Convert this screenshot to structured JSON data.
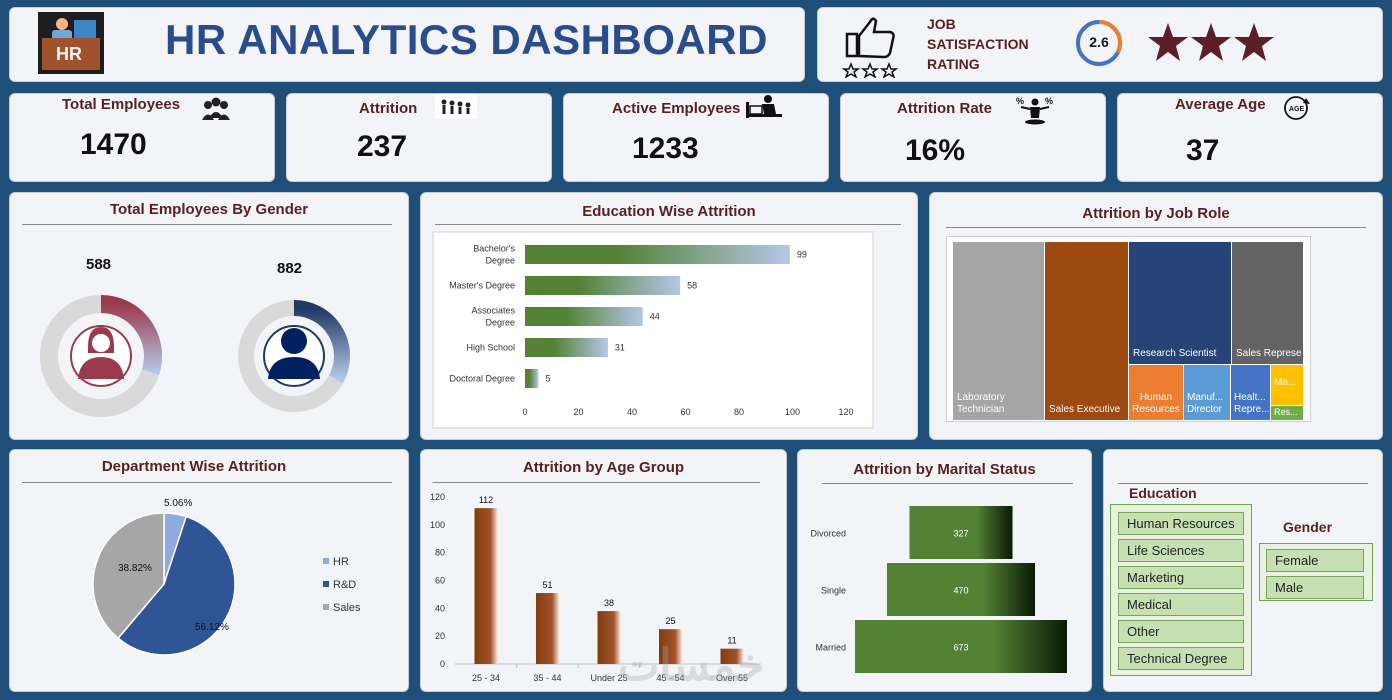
{
  "header": {
    "title": "HR ANALYTICS DASHBOARD",
    "logo_text": "HR"
  },
  "satisfaction": {
    "label_line1": "JOB",
    "label_line2": "SATISFACTION",
    "label_line3": "RATING",
    "rating": "2.6",
    "rating_value": 2.6,
    "rating_max": 4,
    "stars_filled": 3
  },
  "kpis": [
    {
      "label": "Total Employees",
      "value": "1470",
      "icon": "people-group-icon"
    },
    {
      "label": "Attrition",
      "value": "237",
      "icon": "walking-people-icon"
    },
    {
      "label": "Active Employees",
      "value": "1233",
      "icon": "desk-worker-icon"
    },
    {
      "label": "Attrition Rate",
      "value": "16%",
      "icon": "percent-person-icon"
    },
    {
      "label": "Average Age",
      "value": "37",
      "icon": "age-cycle-icon"
    }
  ],
  "colors": {
    "title": "#2a4c8c",
    "label": "#5a1f1f",
    "female": "#9b3a4e",
    "male": "#203864",
    "bar_green": "#548235",
    "bar_brown": "#843c0c",
    "hr": "#8faadc",
    "rnd": "#2f5597",
    "sales": "#a6a6a6",
    "star": "#5a1f28"
  },
  "gender_chart": {
    "title": "Total Employees By Gender",
    "female_count": "588",
    "male_count": "882",
    "total": 1470,
    "female_value": 588,
    "male_value": 882
  },
  "chart_data": [
    {
      "id": "education",
      "type": "bar",
      "orientation": "horizontal",
      "title": "Education Wise Attrition",
      "categories": [
        "Bachelor's Degree",
        "Master's Degree",
        "Associates Degree",
        "High School",
        "Doctoral Degree"
      ],
      "values": [
        99,
        58,
        44,
        31,
        5
      ],
      "xlim": [
        0,
        120
      ],
      "ticks": [
        "0",
        "20",
        "40",
        "60",
        "80",
        "100",
        "120"
      ]
    },
    {
      "id": "jobrole",
      "type": "treemap",
      "title": "Attrition by Job Role",
      "labels": [
        "Laboratory Technician",
        "Sales Executive",
        "Research Scientist",
        "Sales Representati...",
        "Human Resources",
        "Manuf... Director",
        "Healt... Repre...",
        "Ma...",
        "Res..."
      ]
    },
    {
      "id": "department",
      "type": "pie",
      "title": "Department Wise Attrition",
      "categories": [
        "HR",
        "R&D",
        "Sales"
      ],
      "values": [
        5.06,
        56.12,
        38.82
      ],
      "labels": [
        "5.06%",
        "56.12%",
        "38.82%"
      ]
    },
    {
      "id": "age",
      "type": "bar",
      "title": "Attrition by Age Group",
      "categories": [
        "25 - 34",
        "35 - 44",
        "Under 25",
        "45 - 54",
        "Over 55"
      ],
      "values": [
        112,
        51,
        38,
        25,
        11
      ],
      "ylim": [
        0,
        120
      ],
      "ticks": [
        "0",
        "20",
        "40",
        "60",
        "80",
        "100",
        "120"
      ]
    },
    {
      "id": "marital",
      "type": "bar",
      "orientation": "horizontal-funnel",
      "title": "Attrition by Marital Status",
      "categories": [
        "Divorced",
        "Single",
        "Married"
      ],
      "values": [
        327,
        470,
        673
      ]
    }
  ],
  "slicers": {
    "education_title": "Education",
    "education_items": [
      "Human Resources",
      "Life Sciences",
      "Marketing",
      "Medical",
      "Other",
      "Technical Degree"
    ],
    "gender_title": "Gender",
    "gender_items": [
      "Female",
      "Male"
    ]
  },
  "watermark": "خمسات"
}
